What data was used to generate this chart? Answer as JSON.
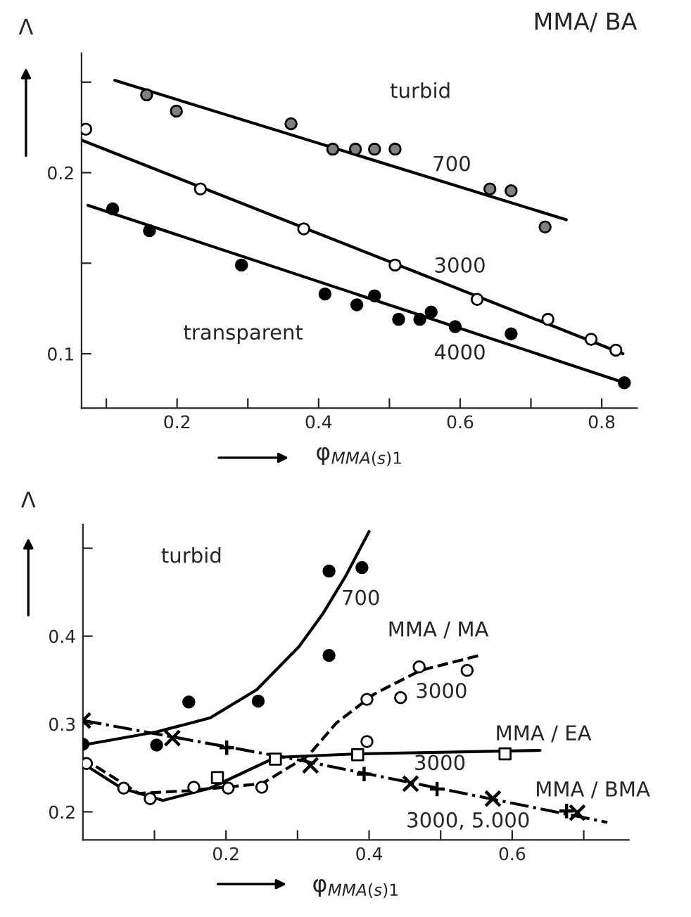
{
  "chart_data": [
    {
      "type": "scatter",
      "title": "MMA/ BA",
      "xlabel": "φ$_{MMA(s)1}$",
      "ylabel": "Λ",
      "xlim": [
        0.065,
        0.85
      ],
      "ylim": [
        0.07,
        0.266
      ],
      "xticks": [
        {
          "value": 0.1,
          "label": null
        },
        0.2,
        {
          "value": 0.3,
          "label": null
        },
        0.4,
        {
          "value": 0.5,
          "label": null
        },
        0.6,
        {
          "value": 0.7,
          "label": null
        },
        0.8
      ],
      "yticks": [
        0.1,
        {
          "value": 0.15,
          "label": null
        },
        0.2,
        {
          "value": 0.25,
          "label": null
        }
      ],
      "grid": false,
      "legend": false,
      "series": [
        {
          "type": "scatter",
          "marker": "circle",
          "color": "#808080",
          "x": [
            0.157,
            0.199,
            0.361,
            0.42,
            0.452,
            0.479,
            0.508,
            0.642,
            0.672,
            0.72
          ],
          "values": [
            0.243,
            0.234,
            0.227,
            0.213,
            0.213,
            0.213,
            0.213,
            0.191,
            0.19,
            0.17
          ]
        },
        {
          "type": "line",
          "line_style": "solid",
          "color": "#000000",
          "x": [
            0.112,
            0.75
          ],
          "values": [
            0.251,
            0.174
          ]
        },
        {
          "type": "scatter",
          "marker": "circle",
          "color": "#ffffff",
          "x": [
            0.071,
            0.233,
            0.379,
            0.508,
            0.624,
            0.724,
            0.785,
            0.82
          ],
          "values": [
            0.224,
            0.191,
            0.169,
            0.149,
            0.13,
            0.119,
            0.108,
            0.102
          ]
        },
        {
          "type": "line",
          "line_style": "solid",
          "color": "#000000",
          "x": [
            0.065,
            0.83
          ],
          "values": [
            0.218,
            0.1
          ]
        },
        {
          "type": "scatter",
          "marker": "circle",
          "color": "#000000",
          "x": [
            0.109,
            0.161,
            0.291,
            0.409,
            0.454,
            0.479,
            0.513,
            0.543,
            0.559,
            0.593,
            0.672,
            0.832
          ],
          "values": [
            0.18,
            0.168,
            0.149,
            0.133,
            0.127,
            0.132,
            0.119,
            0.119,
            0.123,
            0.115,
            0.111,
            0.084
          ]
        },
        {
          "type": "line",
          "line_style": "solid",
          "color": "#000000",
          "x": [
            0.074,
            0.832
          ],
          "values": [
            0.182,
            0.084
          ]
        }
      ],
      "annotations": [
        "turbid",
        "700",
        "3000",
        "transparent",
        "4000"
      ]
    },
    {
      "type": "scatter",
      "xlabel": "φ$_{MMA(s)1}$",
      "ylabel": "Λ",
      "xlim": [
        0,
        0.763
      ],
      "ylim": [
        0.168,
        0.527
      ],
      "xticks": [
        {
          "value": 0.1,
          "label": null
        },
        0.2,
        {
          "value": 0.3,
          "label": null
        },
        0.4,
        {
          "value": 0.5,
          "label": null
        },
        0.6,
        {
          "value": 0.7,
          "label": null
        }
      ],
      "yticks": [
        0.2,
        0.3,
        0.4,
        {
          "value": 0.5,
          "label": null
        }
      ],
      "grid": false,
      "legend": false,
      "series": [
        {
          "type": "scatter",
          "marker": "circle",
          "color": "#000000",
          "x": [
            0.0,
            0.103,
            0.148,
            0.245,
            0.344,
            0.344,
            0.39
          ],
          "values": [
            0.277,
            0.276,
            0.325,
            0.326,
            0.378,
            0.474,
            0.478
          ]
        },
        {
          "type": "line",
          "line_style": "solid",
          "color": "#000000",
          "x": [
            0.0,
            0.103,
            0.178,
            0.243,
            0.302,
            0.335,
            0.367,
            0.4
          ],
          "values": [
            0.276,
            0.291,
            0.307,
            0.339,
            0.388,
            0.425,
            0.468,
            0.519
          ]
        },
        {
          "type": "scatter",
          "marker": "circle",
          "color": "#ffffff",
          "x": [
            0.005,
            0.057,
            0.094,
            0.155,
            0.203,
            0.25,
            0.397,
            0.397,
            0.444,
            0.47,
            0.537
          ],
          "values": [
            0.255,
            0.227,
            0.215,
            0.228,
            0.227,
            0.228,
            0.328,
            0.28,
            0.33,
            0.365,
            0.361
          ]
        },
        {
          "type": "line",
          "line_style": "dashed",
          "color": "#000000",
          "x": [
            0.0,
            0.078,
            0.145,
            0.25,
            0.315,
            0.354,
            0.407,
            0.472,
            0.554
          ],
          "values": [
            0.261,
            0.221,
            0.224,
            0.232,
            0.264,
            0.301,
            0.334,
            0.361,
            0.378
          ]
        },
        {
          "type": "scatter",
          "marker": "square",
          "color": "#ffffff",
          "x": [
            0.188,
            0.269,
            0.384,
            0.59
          ],
          "values": [
            0.239,
            0.26,
            0.265,
            0.266
          ]
        },
        {
          "type": "line",
          "line_style": "solid",
          "color": "#000000",
          "x": [
            0.0,
            0.054,
            0.112,
            0.178,
            0.269,
            0.384,
            0.639
          ],
          "values": [
            0.255,
            0.227,
            0.213,
            0.227,
            0.262,
            0.266,
            0.27
          ]
        },
        {
          "type": "scatter",
          "marker": "cross",
          "color": "#000000",
          "x": [
            0.0,
            0.125,
            0.318,
            0.458,
            0.573,
            0.691
          ],
          "values": [
            0.304,
            0.284,
            0.253,
            0.232,
            0.215,
            0.199
          ]
        },
        {
          "type": "scatter",
          "marker": "plus",
          "color": "#000000",
          "x": [
            0.201,
            0.393,
            0.495,
            0.676
          ],
          "values": [
            0.273,
            0.243,
            0.226,
            0.201
          ]
        },
        {
          "type": "line",
          "line_style": "dashdot",
          "color": "#000000",
          "x": [
            0.0,
            0.302,
            0.733
          ],
          "values": [
            0.304,
            0.259,
            0.188
          ]
        }
      ],
      "annotations": [
        "turbid",
        "700",
        "MMA / MA",
        "3000",
        "MMA / EA",
        "3000",
        "MMA / BMA",
        "3000, 5.000"
      ]
    }
  ]
}
